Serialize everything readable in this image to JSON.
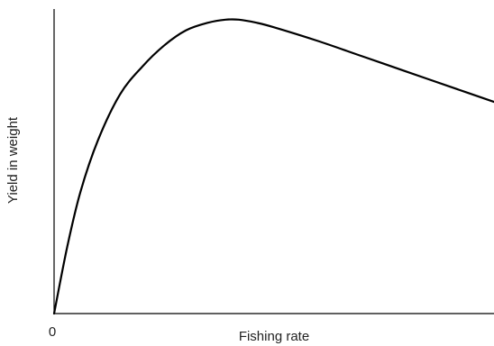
{
  "chart_data": {
    "type": "line",
    "title": "",
    "xlabel": "Fishing rate",
    "ylabel": "Yield in weight",
    "x_tick_labels": [
      "0"
    ],
    "axes_visible": [
      "left",
      "bottom"
    ],
    "grid": false,
    "xlim": [
      0,
      100
    ],
    "ylim": [
      0,
      100
    ],
    "series": [
      {
        "x": [
          0,
          3,
          6,
          10,
          15,
          20,
          25,
          30,
          35,
          39,
          42,
          46,
          50,
          60,
          70,
          80,
          90,
          100
        ],
        "y": [
          0,
          22,
          40,
          57,
          72,
          81,
          88,
          93,
          95.5,
          96.5,
          96.5,
          95.5,
          94,
          89.5,
          84.5,
          79.5,
          74.5,
          69.5
        ]
      }
    ],
    "colors": {
      "line": "#000000",
      "axis": "#000000",
      "text": "#222222"
    }
  }
}
